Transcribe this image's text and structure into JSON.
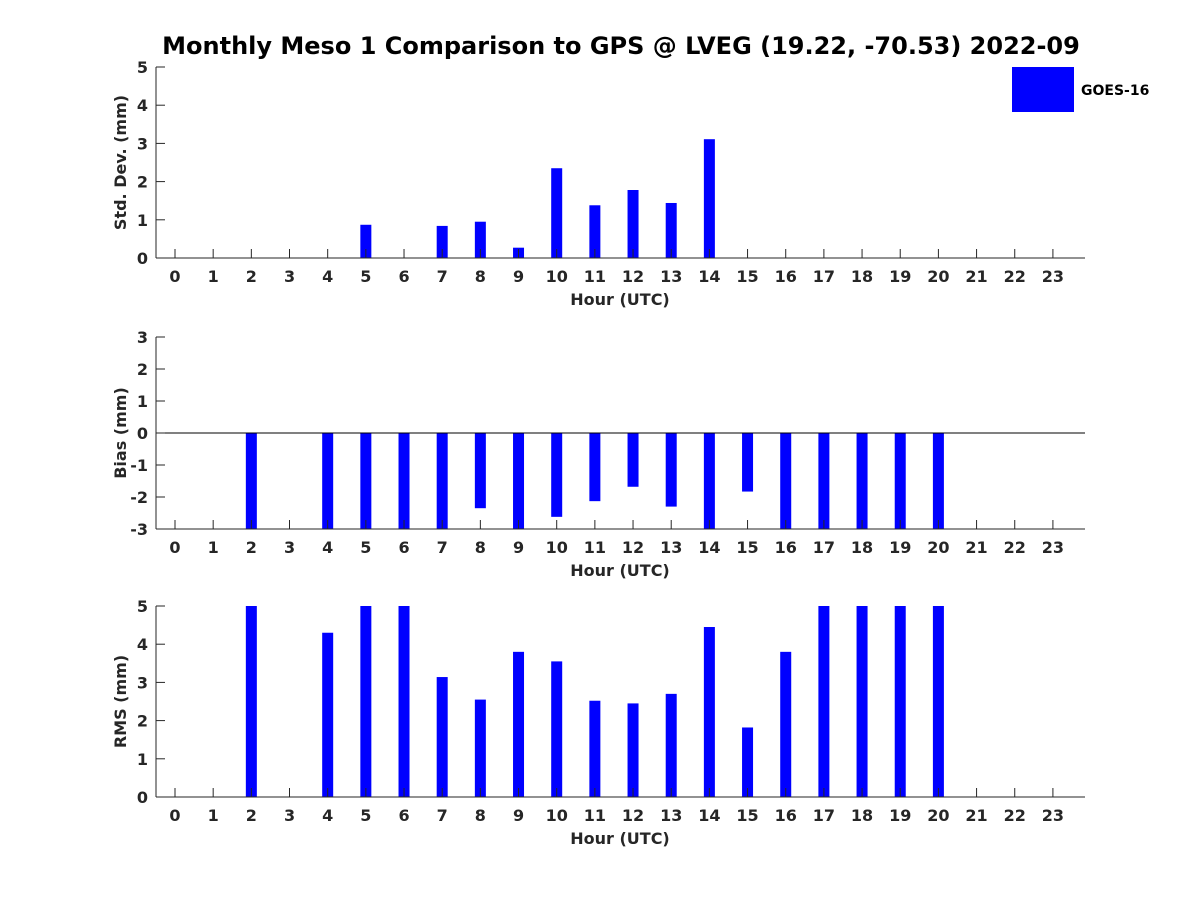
{
  "figure_title": "Monthly Meso 1 Comparison to GPS @ LVEG (19.22, -70.53) 2022-09",
  "legend": {
    "label": "GOES-16",
    "color": "#0000ff"
  },
  "chart_data": [
    {
      "type": "bar",
      "title": "",
      "xlabel": "Hour (UTC)",
      "ylabel": "Std. Dev. (mm)",
      "ylim": [
        0,
        5
      ],
      "yticks": [
        "0",
        "1",
        "2",
        "3",
        "4",
        "5"
      ],
      "categories": [
        "0",
        "1",
        "2",
        "3",
        "4",
        "5",
        "6",
        "7",
        "8",
        "9",
        "10",
        "11",
        "12",
        "13",
        "14",
        "15",
        "16",
        "17",
        "18",
        "19",
        "20",
        "21",
        "22",
        "23"
      ],
      "series": [
        {
          "name": "GOES-16",
          "color": "#0000ff",
          "values": [
            null,
            null,
            0,
            null,
            0,
            0.87,
            0,
            0.84,
            0.95,
            0.27,
            2.35,
            1.38,
            1.78,
            1.44,
            3.11,
            0,
            0,
            0,
            0,
            0,
            0,
            null,
            null,
            null
          ]
        }
      ]
    },
    {
      "type": "bar",
      "title": "",
      "xlabel": "Hour (UTC)",
      "ylabel": "Bias (mm)",
      "ylim": [
        -3,
        3
      ],
      "yticks": [
        "-3",
        "-2",
        "-1",
        "0",
        "1",
        "2",
        "3"
      ],
      "categories": [
        "0",
        "1",
        "2",
        "3",
        "4",
        "5",
        "6",
        "7",
        "8",
        "9",
        "10",
        "11",
        "12",
        "13",
        "14",
        "15",
        "16",
        "17",
        "18",
        "19",
        "20",
        "21",
        "22",
        "23"
      ],
      "series": [
        {
          "name": "GOES-16",
          "color": "#0000ff",
          "values": [
            null,
            null,
            -3.0,
            null,
            -3.0,
            -3.0,
            -3.0,
            -3.0,
            -2.35,
            -3.0,
            -2.62,
            -2.13,
            -1.68,
            -2.3,
            -3.0,
            -1.83,
            -3.0,
            -3.0,
            -3.0,
            -3.0,
            -3.0,
            null,
            null,
            null
          ]
        }
      ]
    },
    {
      "type": "bar",
      "title": "",
      "xlabel": "Hour (UTC)",
      "ylabel": "RMS (mm)",
      "ylim": [
        0,
        5
      ],
      "yticks": [
        "0",
        "1",
        "2",
        "3",
        "4",
        "5"
      ],
      "categories": [
        "0",
        "1",
        "2",
        "3",
        "4",
        "5",
        "6",
        "7",
        "8",
        "9",
        "10",
        "11",
        "12",
        "13",
        "14",
        "15",
        "16",
        "17",
        "18",
        "19",
        "20",
        "21",
        "22",
        "23"
      ],
      "series": [
        {
          "name": "GOES-16",
          "color": "#0000ff",
          "values": [
            null,
            null,
            5.0,
            null,
            4.3,
            5.0,
            5.0,
            3.14,
            2.55,
            3.8,
            3.55,
            2.52,
            2.45,
            2.7,
            4.45,
            1.82,
            3.8,
            5.0,
            5.0,
            5.0,
            5.0,
            null,
            null,
            null
          ]
        }
      ]
    }
  ]
}
